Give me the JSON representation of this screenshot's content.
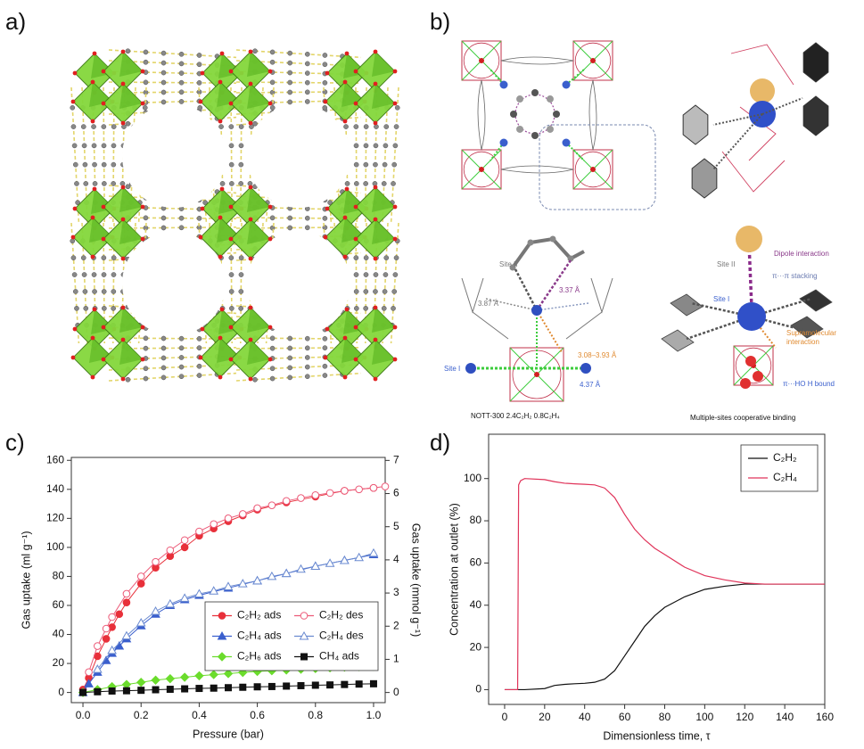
{
  "figure": {
    "panel_labels": [
      "a)",
      "b)",
      "c)",
      "d)"
    ],
    "panel_b": {
      "binding_site": {
        "site_ii": "Site II",
        "d1": "3.87 Å",
        "d2": "3.37 Å",
        "d3": "3.08–3.93 Å",
        "site_i": "Site I",
        "d4": "4.37 Å",
        "caption": "NOTT-300 2.4C₂H₂ 0.8C₂H₄"
      },
      "cooperative": {
        "site_ii": "Site II",
        "dipole": "Dipole interaction",
        "stacking": "π···π stacking",
        "site_i": "Site I",
        "supra": [
          "Supramolecular",
          "interaction"
        ],
        "hbond": "π···HO H bound",
        "caption": "Multiple-sites cooperative binding"
      }
    }
  },
  "chart_data": [
    {
      "type": "line",
      "xlabel": "Pressure (bar)",
      "ylabel": "Gas uptake (ml g⁻¹)",
      "y2label": "Gas uptake (mmol g⁻¹)",
      "xlim": [
        -0.04,
        1.04
      ],
      "xticks": [
        {
          "value": 0,
          "label": "0.0"
        },
        0.2,
        0.4,
        0.6,
        0.8,
        {
          "value": 1,
          "label": "1.0"
        }
      ],
      "ylim": [
        -7,
        162
      ],
      "yticks": [
        0,
        20,
        40,
        60,
        80,
        100,
        120,
        140,
        160
      ],
      "y2lim": [
        -0.306,
        7.09
      ],
      "y2ticks": [
        0,
        1,
        2,
        3,
        4,
        5,
        6,
        7
      ],
      "grid": false,
      "legend": "lower right",
      "legend_columns": 2,
      "series": [
        {
          "name": "C₂H₂ ads",
          "color": "#e8303a",
          "marker": "circle",
          "x": [
            0,
            0.02,
            0.05,
            0.08,
            0.1,
            0.125,
            0.15,
            0.2,
            0.25,
            0.3,
            0.35,
            0.4,
            0.45,
            0.5,
            0.55,
            0.6,
            0.7,
            0.8,
            0.9,
            1.0
          ],
          "values": [
            2,
            10,
            25,
            37,
            45,
            54,
            62,
            75,
            86,
            94,
            100,
            108,
            113,
            118,
            122,
            126,
            131,
            135,
            139,
            141
          ]
        },
        {
          "name": "C₂H₂ des",
          "color": "#ec5a78",
          "marker": "circle-open",
          "x": [
            0.02,
            0.05,
            0.08,
            0.1,
            0.15,
            0.2,
            0.25,
            0.3,
            0.35,
            0.4,
            0.45,
            0.5,
            0.55,
            0.6,
            0.65,
            0.7,
            0.75,
            0.8,
            0.85,
            0.9,
            0.95,
            1.0,
            1.04
          ],
          "values": [
            14,
            32,
            44,
            52,
            68,
            80,
            90,
            98,
            105,
            111,
            116,
            120,
            123,
            127,
            129,
            132,
            134,
            136,
            137.5,
            139,
            140,
            141,
            142
          ]
        },
        {
          "name": "C₂H₄ ads",
          "color": "#3a5fcd",
          "marker": "triangle",
          "x": [
            0,
            0.02,
            0.05,
            0.08,
            0.1,
            0.125,
            0.15,
            0.2,
            0.25,
            0.3,
            0.35,
            0.4,
            0.5,
            0.6,
            0.7,
            0.8,
            0.9,
            1.0
          ],
          "values": [
            0,
            6,
            14,
            22,
            27,
            32,
            37,
            46,
            54,
            60,
            64,
            67,
            72,
            77,
            82,
            87,
            91,
            95
          ]
        },
        {
          "name": "C₂H₄ des",
          "color": "#6a8ad0",
          "marker": "triangle-open",
          "x": [
            0.05,
            0.1,
            0.15,
            0.2,
            0.25,
            0.3,
            0.35,
            0.4,
            0.45,
            0.5,
            0.55,
            0.6,
            0.65,
            0.7,
            0.75,
            0.8,
            0.85,
            0.9,
            0.95,
            1.0
          ],
          "values": [
            16,
            29,
            39,
            48,
            56,
            61,
            65,
            68,
            70,
            73,
            75,
            77,
            80,
            82,
            85,
            87,
            89,
            91,
            93,
            96
          ]
        },
        {
          "name": "C₂H₆ ads",
          "color": "#6bdc2c",
          "marker": "diamond",
          "x": [
            0,
            0.05,
            0.1,
            0.15,
            0.2,
            0.25,
            0.3,
            0.35,
            0.4,
            0.45,
            0.5,
            0.55,
            0.6,
            0.65,
            0.7,
            0.75,
            0.8,
            0.85,
            0.9,
            0.95,
            1.0
          ],
          "values": [
            0,
            2,
            4,
            5.5,
            7,
            8.5,
            9.5,
            10.5,
            11.5,
            12.3,
            13,
            13.8,
            14.5,
            15,
            15.5,
            16,
            16.5,
            17,
            17.5,
            17.8,
            18
          ]
        },
        {
          "name": "CH₄ ads",
          "color": "#111111",
          "marker": "square",
          "x": [
            0,
            0.05,
            0.1,
            0.15,
            0.2,
            0.25,
            0.3,
            0.35,
            0.4,
            0.45,
            0.5,
            0.55,
            0.6,
            0.65,
            0.7,
            0.75,
            0.8,
            0.85,
            0.9,
            0.95,
            1.0
          ],
          "values": [
            0,
            0.5,
            1,
            1.2,
            1.5,
            1.9,
            2.2,
            2.5,
            2.8,
            3,
            3.3,
            3.6,
            3.9,
            4.1,
            4.4,
            4.7,
            5,
            5.2,
            5.5,
            5.8,
            6
          ]
        }
      ]
    },
    {
      "type": "line",
      "xlabel": "Dimensionless time, τ",
      "ylabel": "Concentration at outlet (%)",
      "xlim": [
        -8,
        160
      ],
      "xticks": [
        0,
        20,
        40,
        60,
        80,
        100,
        120,
        140,
        160
      ],
      "ylim": [
        -7,
        121
      ],
      "yticks": [
        0,
        20,
        40,
        60,
        80,
        100
      ],
      "grid": false,
      "legend": "upper right",
      "legend_columns": 1,
      "x": [
        0,
        5,
        6.5,
        7,
        8,
        10,
        20,
        25,
        30,
        35,
        40,
        45,
        50,
        55,
        60,
        65,
        70,
        75,
        80,
        90,
        100,
        110,
        120,
        130,
        140,
        160
      ],
      "series": [
        {
          "name": "C₂H₂",
          "color": "#111111",
          "values": [
            0,
            0,
            0,
            0,
            0,
            0,
            0.5,
            2,
            2.5,
            2.8,
            3,
            3.5,
            5,
            9,
            16,
            23,
            30,
            35,
            39,
            44,
            47.5,
            49,
            50,
            50,
            50,
            50
          ]
        },
        {
          "name": "C₂H₄",
          "color": "#e0345a",
          "values": [
            0,
            0,
            0,
            97,
            99,
            100,
            99.5,
            98.5,
            97.8,
            97.5,
            97.3,
            97,
            95.5,
            91,
            83,
            76,
            71,
            67,
            64,
            58,
            54,
            52,
            50.5,
            50,
            50,
            50
          ]
        }
      ]
    }
  ]
}
